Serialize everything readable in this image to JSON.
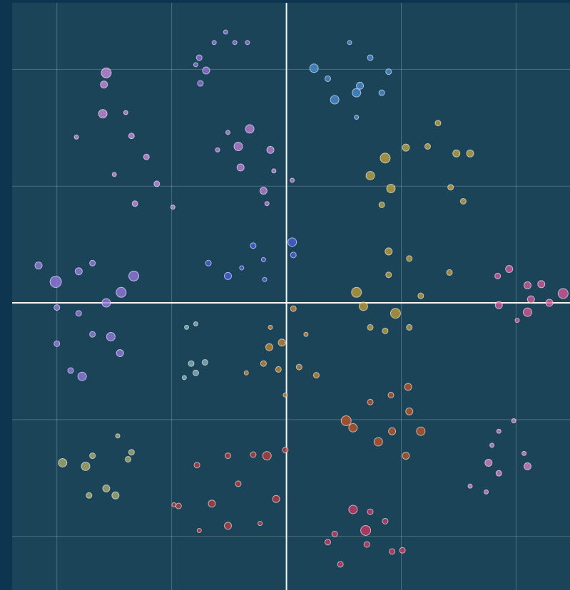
{
  "chart_data": {
    "type": "scatter",
    "xlim": [
      -2.39,
      2.47
    ],
    "ylim": [
      -2.46,
      2.57
    ],
    "xticks": [
      -2,
      -1,
      0,
      1,
      2
    ],
    "yticks": [
      -2,
      -1,
      0,
      1,
      2
    ],
    "grid": true,
    "zero_lines": true,
    "series": [
      {
        "color": "#d78be0",
        "x": [
          -1.57,
          -1.59,
          -1.6,
          -1.4,
          -1.35,
          -1.22,
          -1.13,
          -1.32,
          -0.99,
          -1.83,
          -1.5
        ],
        "values": [
          1.97,
          1.87,
          1.62,
          1.63,
          1.43,
          1.25,
          1.02,
          0.85,
          0.82,
          1.42,
          1.1
        ],
        "sizes": [
          7,
          5,
          6,
          3,
          4,
          4,
          4,
          4,
          3,
          3,
          3
        ]
      },
      {
        "color": "#9a70e2",
        "x": [
          -0.76,
          -0.7,
          -0.75,
          -0.63,
          -0.53,
          -0.45,
          -0.34,
          -0.79
        ],
        "values": [
          2.1,
          1.99,
          1.88,
          2.23,
          2.32,
          2.23,
          2.23,
          2.04
        ],
        "sizes": [
          4,
          5,
          4,
          3,
          3,
          3,
          3,
          3
        ]
      },
      {
        "color": "#4a8fd8",
        "x": [
          0.24,
          0.42,
          0.61,
          0.73,
          0.89,
          0.55,
          0.64,
          0.36,
          0.83,
          0.61
        ],
        "values": [
          2.01,
          1.74,
          1.8,
          2.1,
          1.98,
          2.23,
          1.86,
          1.92,
          1.8,
          1.59
        ],
        "sizes": [
          6,
          6,
          6,
          4,
          4,
          3,
          5,
          4,
          4,
          3
        ]
      },
      {
        "color": "#c77fdc",
        "x": [
          -0.32,
          -0.42,
          -0.6,
          -0.14,
          -0.4,
          -0.2,
          -0.11,
          0.05,
          -0.51,
          -0.17
        ],
        "values": [
          1.49,
          1.34,
          1.31,
          1.31,
          1.16,
          0.96,
          1.13,
          1.05,
          1.46,
          0.85
        ],
        "sizes": [
          6,
          6,
          3,
          5,
          5,
          5,
          3,
          3,
          3,
          3
        ]
      },
      {
        "color": "#c9a83a",
        "x": [
          0.86,
          1.04,
          0.73,
          0.91,
          1.23,
          1.48,
          1.6,
          1.43,
          1.54,
          1.32,
          0.83
        ],
        "values": [
          1.24,
          1.33,
          1.09,
          0.98,
          1.34,
          1.28,
          1.28,
          0.99,
          0.87,
          1.54,
          0.84
        ],
        "sizes": [
          7,
          5,
          6,
          6,
          4,
          5,
          5,
          4,
          4,
          4,
          4
        ]
      },
      {
        "color": "#9e7ae8",
        "x": [
          -2.16,
          -2.01,
          -1.81,
          -1.69,
          -1.33,
          -1.44,
          -1.57,
          -2.0,
          -1.81,
          -1.69,
          -1.53,
          -2.0,
          -1.88,
          -1.78,
          -1.45
        ],
        "values": [
          0.32,
          0.18,
          0.27,
          0.34,
          0.23,
          0.09,
          0.0,
          -0.04,
          -0.09,
          -0.27,
          -0.29,
          -0.35,
          -0.58,
          -0.63,
          -0.43
        ],
        "sizes": [
          5,
          8,
          5,
          4,
          7,
          7,
          6,
          4,
          4,
          4,
          6,
          4,
          4,
          6,
          5
        ]
      },
      {
        "color": "#4f5ee6",
        "x": [
          -0.68,
          -0.51,
          -0.29,
          -0.2,
          0.05,
          0.06,
          -0.19,
          -0.39
        ],
        "values": [
          0.34,
          0.23,
          0.49,
          0.37,
          0.52,
          0.41,
          0.2,
          0.3
        ],
        "sizes": [
          4,
          5,
          4,
          3,
          6,
          4,
          3,
          3
        ]
      },
      {
        "color": "#c9a030",
        "x": [
          0.61,
          0.67,
          0.89,
          1.07,
          0.95,
          0.86,
          1.17,
          1.42,
          0.73,
          1.07,
          0.89
        ],
        "values": [
          0.09,
          -0.03,
          0.44,
          0.38,
          -0.09,
          -0.24,
          0.06,
          0.26,
          -0.21,
          -0.21,
          0.24
        ],
        "sizes": [
          7,
          6,
          5,
          4,
          7,
          4,
          4,
          4,
          4,
          4,
          4
        ]
      },
      {
        "color": "#e0579a",
        "x": [
          1.84,
          1.94,
          2.1,
          2.22,
          2.41,
          2.13,
          2.1,
          1.85,
          2.29,
          2.01
        ],
        "values": [
          0.23,
          0.29,
          0.15,
          0.16,
          0.08,
          0.03,
          -0.08,
          -0.02,
          0.0,
          -0.15
        ],
        "sizes": [
          4,
          5,
          5,
          5,
          7,
          5,
          6,
          5,
          5,
          3
        ]
      },
      {
        "color": "#8fb5b5",
        "x": [
          -0.87,
          -0.79,
          -0.83,
          -0.71,
          -0.89,
          -0.79
        ],
        "values": [
          -0.21,
          -0.18,
          -0.52,
          -0.51,
          -0.64,
          -0.6
        ],
        "sizes": [
          3,
          3,
          4,
          4,
          3,
          4
        ]
      },
      {
        "color": "#d0852a",
        "x": [
          -0.15,
          -0.04,
          0.06,
          -0.14,
          -0.2,
          -0.07,
          0.11,
          0.26,
          -0.35,
          -0.01,
          0.17
        ],
        "values": [
          -0.38,
          -0.34,
          -0.05,
          -0.21,
          -0.52,
          -0.57,
          -0.55,
          -0.62,
          -0.6,
          -0.79,
          -0.27
        ],
        "sizes": [
          5,
          5,
          4,
          3,
          4,
          4,
          4,
          4,
          3,
          3,
          3
        ]
      },
      {
        "color": "#c9531f",
        "x": [
          0.52,
          0.58,
          0.8,
          0.92,
          1.06,
          1.07,
          1.17,
          1.04,
          0.73,
          0.91
        ],
        "values": [
          -1.01,
          -1.07,
          -1.19,
          -1.1,
          -0.72,
          -0.93,
          -1.1,
          -1.31,
          -0.85,
          -0.79
        ],
        "sizes": [
          7,
          6,
          6,
          5,
          5,
          5,
          6,
          5,
          4,
          4
        ]
      },
      {
        "color": "#e37fc6",
        "x": [
          1.76,
          1.85,
          2.1,
          1.98,
          1.85,
          1.79,
          1.6,
          1.74,
          2.07
        ],
        "values": [
          -1.37,
          -1.46,
          -1.4,
          -1.01,
          -1.1,
          -1.22,
          -1.57,
          -1.62,
          -1.29
        ],
        "sizes": [
          5,
          4,
          5,
          3,
          3,
          3,
          3,
          3,
          3
        ]
      },
      {
        "color": "#b5b06a",
        "x": [
          -1.95,
          -1.75,
          -1.69,
          -1.47,
          -1.35,
          -1.57,
          -1.49,
          -1.72,
          -1.38
        ],
        "values": [
          -1.37,
          -1.4,
          -1.31,
          -1.14,
          -1.28,
          -1.59,
          -1.65,
          -1.65,
          -1.34
        ],
        "sizes": [
          6,
          6,
          4,
          3,
          4,
          5,
          5,
          4,
          4
        ]
      },
      {
        "color": "#c23a3a",
        "x": [
          -0.94,
          -0.78,
          -0.65,
          -0.51,
          -0.29,
          -0.17,
          -0.01,
          -0.09,
          -0.51,
          -0.23,
          -0.76,
          -0.98,
          -0.42
        ],
        "values": [
          -1.74,
          -1.39,
          -1.72,
          -1.31,
          -1.3,
          -1.31,
          -1.26,
          -1.68,
          -1.91,
          -1.89,
          -1.95,
          -1.73,
          -1.55
        ],
        "sizes": [
          4,
          4,
          5,
          4,
          4,
          6,
          4,
          5,
          5,
          3,
          3,
          3,
          4
        ]
      },
      {
        "color": "#d43561",
        "x": [
          0.42,
          0.58,
          0.69,
          0.7,
          0.86,
          1.01,
          0.92,
          0.47,
          0.36,
          0.73
        ],
        "values": [
          -1.98,
          -1.77,
          -1.95,
          -2.07,
          -1.87,
          -2.12,
          -2.13,
          -2.24,
          -2.05,
          -1.79
        ],
        "sizes": [
          4,
          6,
          7,
          4,
          4,
          4,
          4,
          4,
          4,
          4
        ]
      }
    ]
  }
}
